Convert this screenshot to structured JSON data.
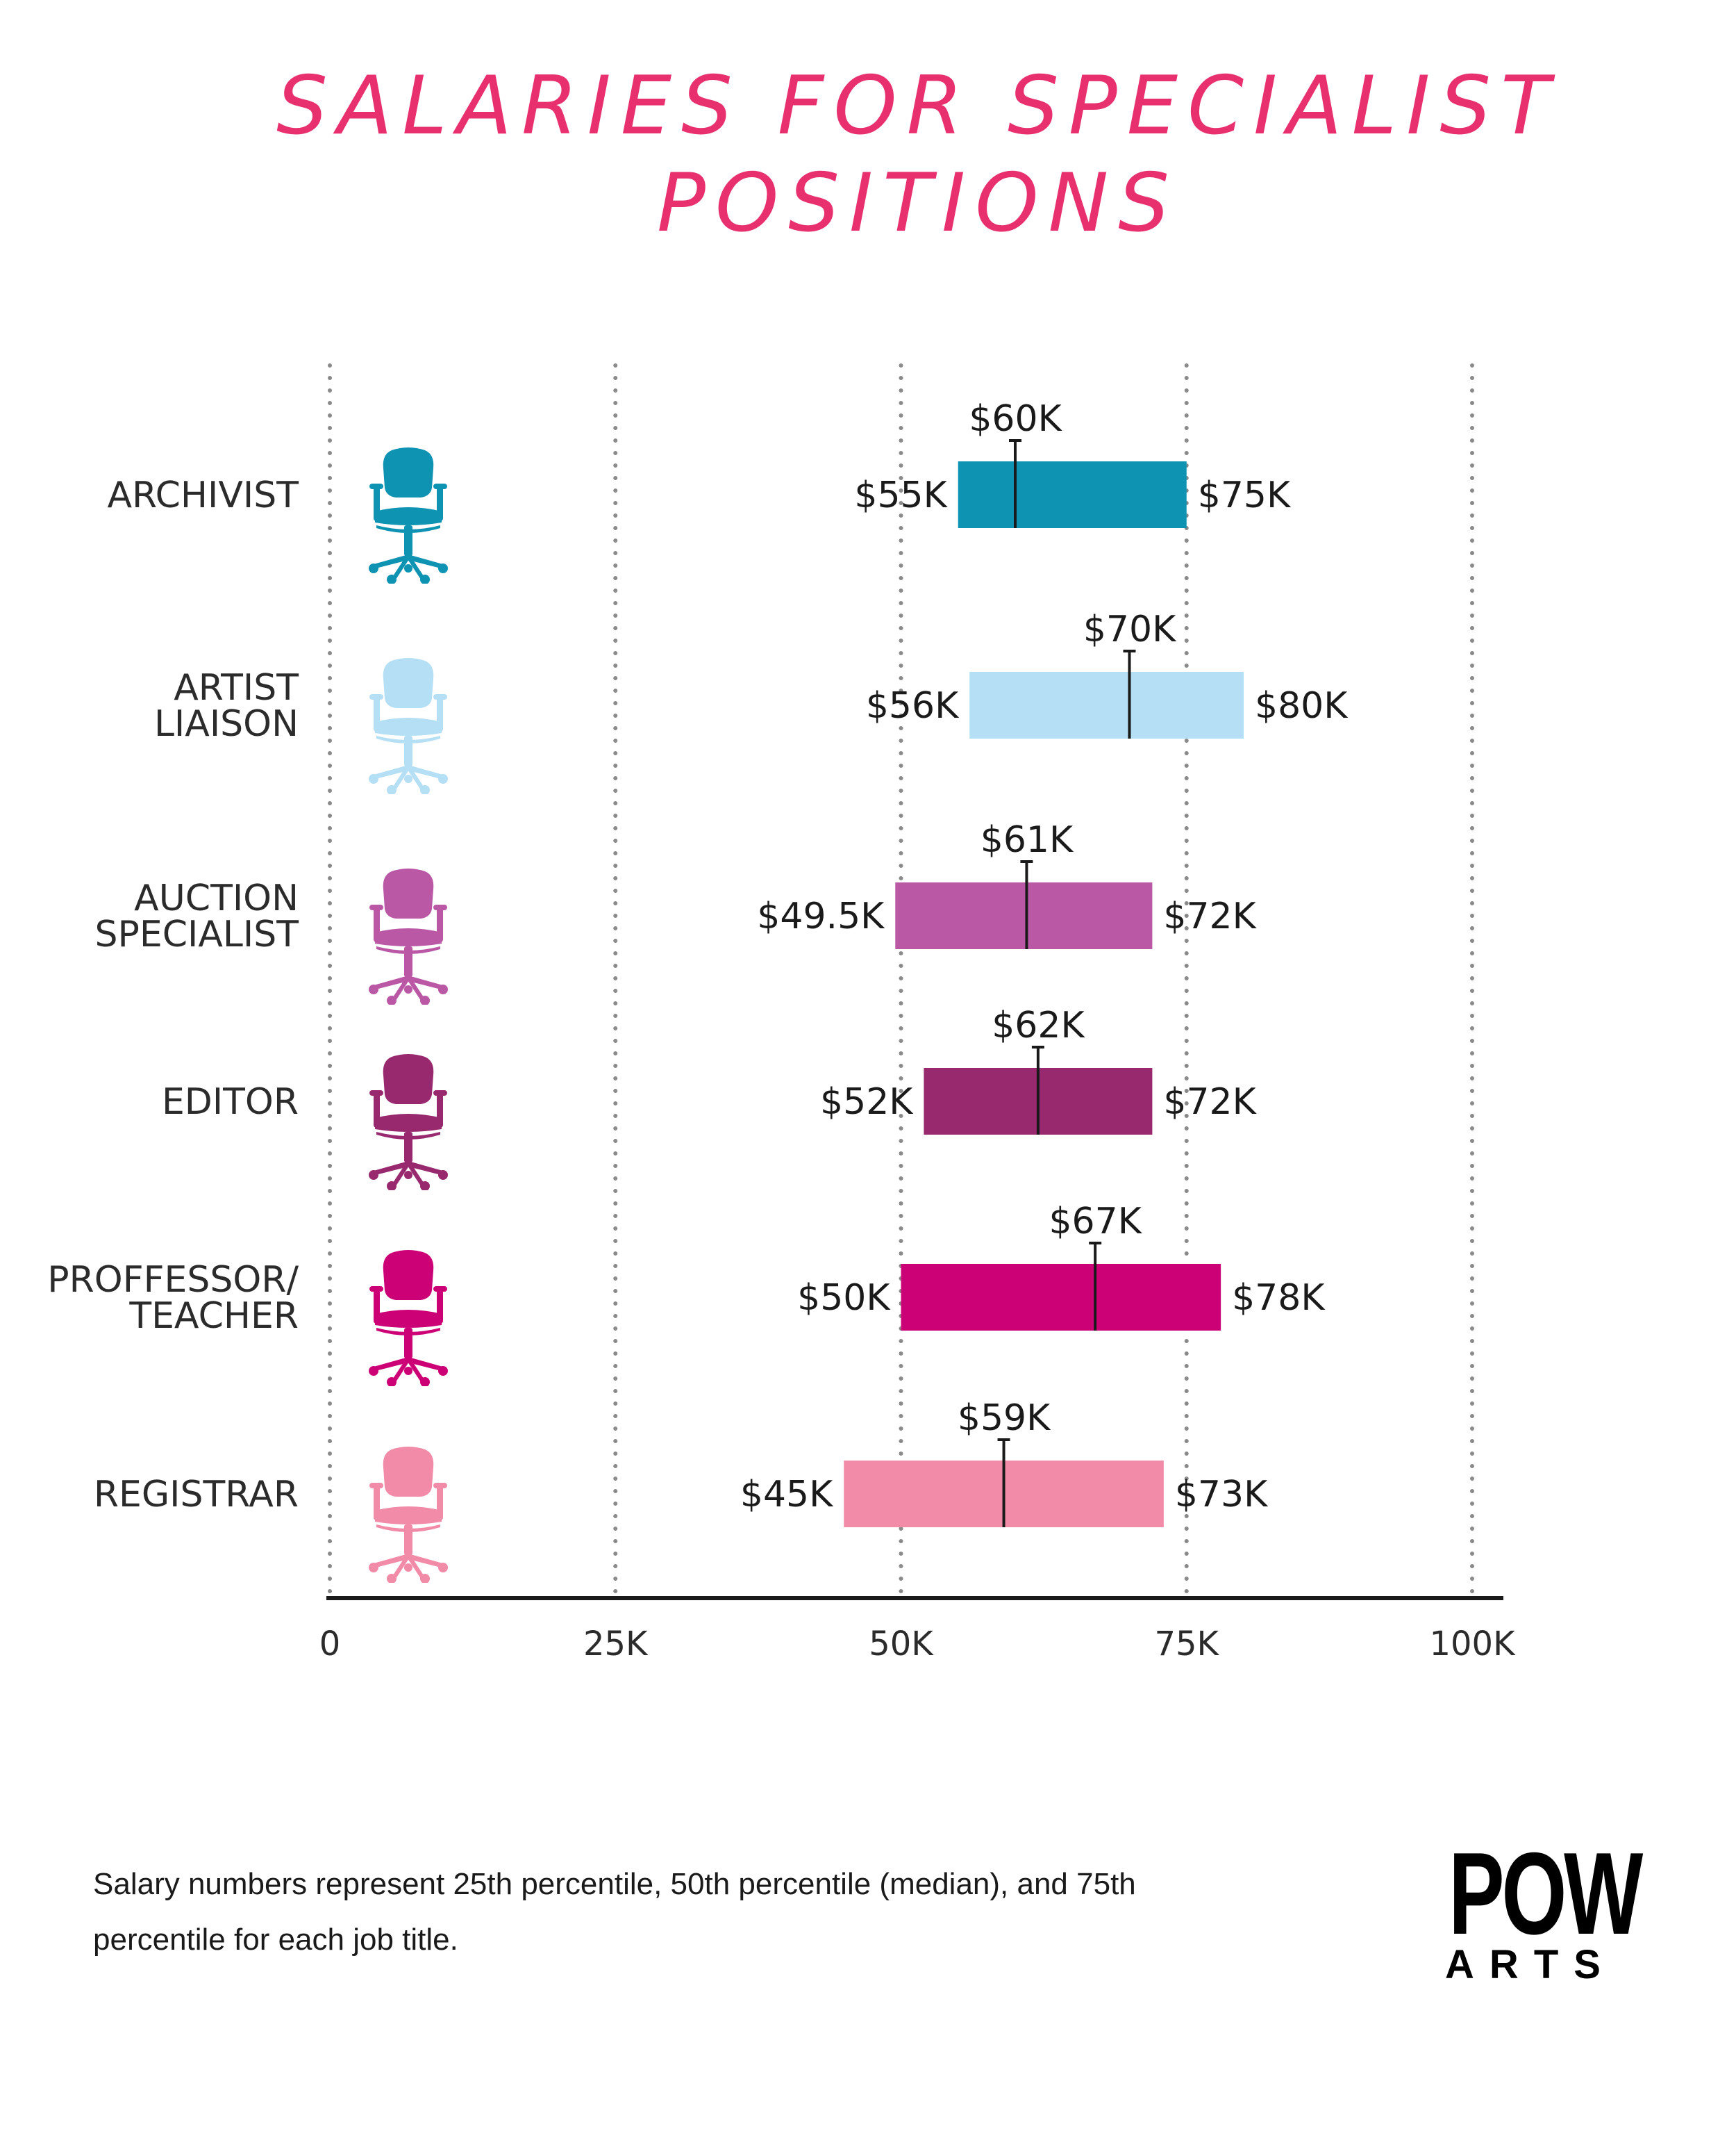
{
  "chart_data": {
    "type": "bar",
    "title": "SALARIES FOR SPECIALIST POSITIONS",
    "title_color": "#e8306f",
    "x_ticks": [
      "0",
      "25K",
      "50K",
      "75K",
      "100K"
    ],
    "xlim": [
      0,
      100000
    ],
    "grid": "vertical dotted",
    "categories": [
      {
        "label_lines": [
          "ARCHIVIST"
        ],
        "p25": 55000,
        "median": 60000,
        "p75": 75000,
        "p25_label": "$55K",
        "median_label": "$60K",
        "p75_label": "$75K",
        "color": "#0e93b2"
      },
      {
        "label_lines": [
          "ARTIST",
          "LIAISON"
        ],
        "p25": 56000,
        "median": 70000,
        "p75": 80000,
        "p25_label": "$56K",
        "median_label": "$70K",
        "p75_label": "$80K",
        "color": "#b5dff4"
      },
      {
        "label_lines": [
          "AUCTION",
          "SPECIALIST"
        ],
        "p25": 49500,
        "median": 61000,
        "p75": 72000,
        "p25_label": "$49.5K",
        "median_label": "$61K",
        "p75_label": "$72K",
        "color": "#bb58a5"
      },
      {
        "label_lines": [
          "EDITOR"
        ],
        "p25": 52000,
        "median": 62000,
        "p75": 72000,
        "p25_label": "$52K",
        "median_label": "$62K",
        "p75_label": "$72K",
        "color": "#98296e"
      },
      {
        "label_lines": [
          "PROFFESSOR/",
          "TEACHER"
        ],
        "p25": 50000,
        "median": 67000,
        "p75": 78000,
        "p25_label": "$50K",
        "median_label": "$67K",
        "p75_label": "$78K",
        "color": "#cd0176"
      },
      {
        "label_lines": [
          "REGISTRAR"
        ],
        "p25": 45000,
        "median": 59000,
        "p75": 73000,
        "p25_label": "$45K",
        "median_label": "$59K",
        "p75_label": "$73K",
        "color": "#f28ba8"
      }
    ]
  },
  "footnote": "Salary numbers represent 25th percentile, 50th percentile (median), and 75th percentile for each job title.",
  "logo": {
    "top": "POW",
    "bottom": "ARTS"
  },
  "icon": "office-chair-icon"
}
